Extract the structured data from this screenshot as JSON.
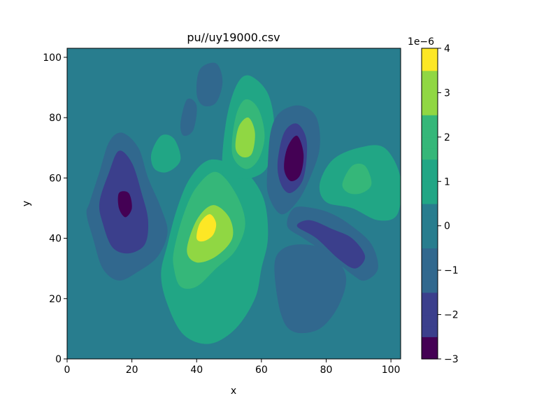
{
  "chart_data": {
    "type": "heatmap",
    "title": "pu//uy19000.csv",
    "xlabel": "x",
    "ylabel": "y",
    "xlim": [
      0,
      103
    ],
    "ylim": [
      0,
      103
    ],
    "xticks": [
      0,
      20,
      40,
      60,
      80,
      100
    ],
    "yticks": [
      0,
      20,
      40,
      60,
      80,
      100
    ],
    "colorbar": {
      "cmap": "viridis",
      "vmin": -3,
      "vmax": 4,
      "ticks": [
        -3,
        -2,
        -1,
        0,
        1,
        2,
        3,
        4
      ],
      "offset_label": "1e−6"
    },
    "background_level": 0,
    "features": [
      {
        "contour": [
          [
            7,
            52
          ],
          [
            10,
            62
          ],
          [
            13,
            72
          ],
          [
            17,
            75
          ],
          [
            22,
            70
          ],
          [
            25,
            60
          ],
          [
            29,
            50
          ],
          [
            31,
            42
          ],
          [
            28,
            34
          ],
          [
            22,
            29
          ],
          [
            16,
            26
          ],
          [
            11,
            30
          ],
          [
            8,
            40
          ],
          [
            6,
            48
          ]
        ],
        "level": -1
      },
      {
        "contour": [
          [
            10,
            52
          ],
          [
            13,
            62
          ],
          [
            16,
            69
          ],
          [
            20,
            65
          ],
          [
            23,
            55
          ],
          [
            25,
            46
          ],
          [
            24,
            38
          ],
          [
            19,
            35
          ],
          [
            14,
            37
          ],
          [
            11,
            45
          ]
        ],
        "level": -2
      },
      {
        "contour": [
          [
            16,
            50
          ],
          [
            16,
            55
          ],
          [
            19,
            55
          ],
          [
            20,
            50
          ],
          [
            18,
            47
          ]
        ],
        "level": -3
      },
      {
        "contour": [
          [
            31,
            38
          ],
          [
            34,
            50
          ],
          [
            38,
            60
          ],
          [
            44,
            66
          ],
          [
            52,
            64
          ],
          [
            57,
            60
          ],
          [
            61,
            52
          ],
          [
            62,
            40
          ],
          [
            60,
            30
          ],
          [
            58,
            20
          ],
          [
            52,
            10
          ],
          [
            44,
            5
          ],
          [
            36,
            8
          ],
          [
            31,
            18
          ],
          [
            29,
            28
          ]
        ],
        "level": 1
      },
      {
        "contour": [
          [
            33,
            36
          ],
          [
            36,
            48
          ],
          [
            40,
            57
          ],
          [
            46,
            62
          ],
          [
            52,
            55
          ],
          [
            55,
            45
          ],
          [
            52,
            36
          ],
          [
            46,
            30
          ],
          [
            40,
            24
          ],
          [
            35,
            24
          ],
          [
            33,
            30
          ]
        ],
        "level": 2
      },
      {
        "contour": [
          [
            37,
            36
          ],
          [
            40,
            46
          ],
          [
            45,
            51
          ],
          [
            50,
            47
          ],
          [
            51,
            40
          ],
          [
            46,
            34
          ],
          [
            40,
            32
          ]
        ],
        "level": 3
      },
      {
        "contour": [
          [
            40,
            40
          ],
          [
            41,
            45
          ],
          [
            44,
            48
          ],
          [
            46,
            45
          ],
          [
            45,
            41
          ],
          [
            42,
            39
          ]
        ],
        "level": 4
      },
      {
        "contour": [
          [
            48,
            62
          ],
          [
            49,
            78
          ],
          [
            52,
            90
          ],
          [
            56,
            94
          ],
          [
            62,
            88
          ],
          [
            64,
            76
          ],
          [
            62,
            64
          ],
          [
            57,
            60
          ],
          [
            52,
            60
          ]
        ],
        "level": 1
      },
      {
        "contour": [
          [
            51,
            68
          ],
          [
            52,
            80
          ],
          [
            55,
            86
          ],
          [
            59,
            83
          ],
          [
            61,
            74
          ],
          [
            59,
            66
          ],
          [
            55,
            63
          ]
        ],
        "level": 2
      },
      {
        "contour": [
          [
            52,
            70
          ],
          [
            53,
            77
          ],
          [
            56,
            80
          ],
          [
            58,
            75
          ],
          [
            57,
            68
          ],
          [
            54,
            67
          ]
        ],
        "level": 3
      },
      {
        "contour": [
          [
            62,
            65
          ],
          [
            63,
            76
          ],
          [
            66,
            82
          ],
          [
            72,
            84
          ],
          [
            77,
            80
          ],
          [
            78,
            70
          ],
          [
            75,
            60
          ],
          [
            71,
            52
          ],
          [
            66,
            48
          ],
          [
            62,
            55
          ]
        ],
        "level": -1
      },
      {
        "contour": [
          [
            65,
            65
          ],
          [
            67,
            75
          ],
          [
            71,
            78
          ],
          [
            74,
            72
          ],
          [
            73,
            60
          ],
          [
            69,
            55
          ],
          [
            66,
            58
          ]
        ],
        "level": -2
      },
      {
        "contour": [
          [
            67,
            63
          ],
          [
            68,
            70
          ],
          [
            71,
            74
          ],
          [
            73,
            68
          ],
          [
            72,
            61
          ],
          [
            69,
            59
          ]
        ],
        "level": -3
      },
      {
        "contour": [
          [
            68,
            44
          ],
          [
            73,
            40
          ],
          [
            80,
            35
          ],
          [
            88,
            28
          ],
          [
            92,
            26
          ],
          [
            96,
            30
          ],
          [
            94,
            38
          ],
          [
            88,
            44
          ],
          [
            82,
            48
          ],
          [
            76,
            50
          ],
          [
            70,
            50
          ]
        ],
        "level": -1
      },
      {
        "contour": [
          [
            71,
            44
          ],
          [
            77,
            40
          ],
          [
            84,
            33
          ],
          [
            89,
            30
          ],
          [
            92,
            34
          ],
          [
            88,
            40
          ],
          [
            82,
            43
          ],
          [
            75,
            46
          ]
        ],
        "level": -2
      },
      {
        "contour": [
          [
            64,
            30
          ],
          [
            66,
            15
          ],
          [
            70,
            9
          ],
          [
            78,
            10
          ],
          [
            84,
            18
          ],
          [
            86,
            28
          ],
          [
            80,
            36
          ],
          [
            72,
            38
          ],
          [
            66,
            36
          ]
        ],
        "level": -1
      },
      {
        "contour": [
          [
            78,
            58
          ],
          [
            82,
            66
          ],
          [
            90,
            70
          ],
          [
            98,
            70
          ],
          [
            103,
            60
          ],
          [
            102,
            48
          ],
          [
            96,
            46
          ],
          [
            88,
            50
          ],
          [
            80,
            52
          ]
        ],
        "level": 1
      },
      {
        "contour": [
          [
            85,
            58
          ],
          [
            88,
            64
          ],
          [
            92,
            64
          ],
          [
            94,
            58
          ],
          [
            91,
            55
          ],
          [
            87,
            55
          ]
        ],
        "level": 2
      },
      {
        "contour": [
          [
            40,
            88
          ],
          [
            41,
            96
          ],
          [
            46,
            98
          ],
          [
            48,
            92
          ],
          [
            46,
            85
          ],
          [
            42,
            84
          ]
        ],
        "level": -1
      },
      {
        "contour": [
          [
            35,
            78
          ],
          [
            37,
            86
          ],
          [
            40,
            84
          ],
          [
            39,
            76
          ],
          [
            36,
            74
          ]
        ],
        "level": -1
      },
      {
        "contour": [
          [
            26,
            68
          ],
          [
            29,
            74
          ],
          [
            33,
            73
          ],
          [
            35,
            66
          ],
          [
            31,
            62
          ],
          [
            27,
            63
          ]
        ],
        "level": 1
      }
    ]
  }
}
